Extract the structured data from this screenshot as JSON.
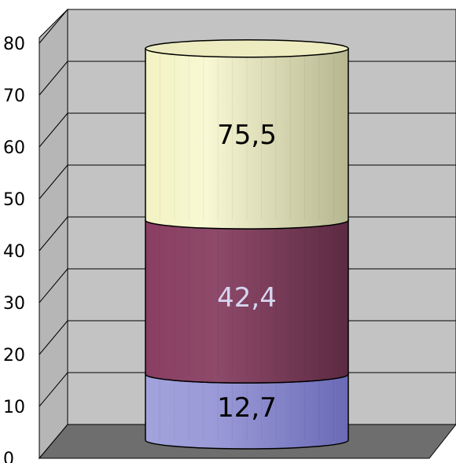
{
  "chart_data": {
    "type": "bar",
    "subtype": "stacked-3d-cylinder",
    "categories": [
      ""
    ],
    "series": [
      {
        "values": [
          12.7
        ],
        "label": "12,7",
        "color": "#8e8ed6"
      },
      {
        "values": [
          42.4
        ],
        "label": "42,4",
        "color": "#7e3858"
      },
      {
        "values": [
          75.5
        ],
        "label": "75,5",
        "color": "#e6e6b2"
      }
    ],
    "ylim": [
      0,
      80
    ],
    "yticks": [
      {
        "value": 0,
        "label": "0"
      },
      {
        "value": 10,
        "label": "10"
      },
      {
        "value": 20,
        "label": "20"
      },
      {
        "value": 30,
        "label": "30"
      },
      {
        "value": 40,
        "label": "40"
      },
      {
        "value": 50,
        "label": "50"
      },
      {
        "value": 60,
        "label": "60"
      },
      {
        "value": 70,
        "label": "70"
      },
      {
        "value": 80,
        "label": "80"
      }
    ],
    "grid": true,
    "legend": "none",
    "colors": {
      "back_wall": "#c3c3c3",
      "side_wall": "#b6b6b6",
      "floor": "#6e6e6e",
      "gridline": "#000000",
      "label_dark": "#000000",
      "label_light": "#d6d6f0"
    }
  }
}
